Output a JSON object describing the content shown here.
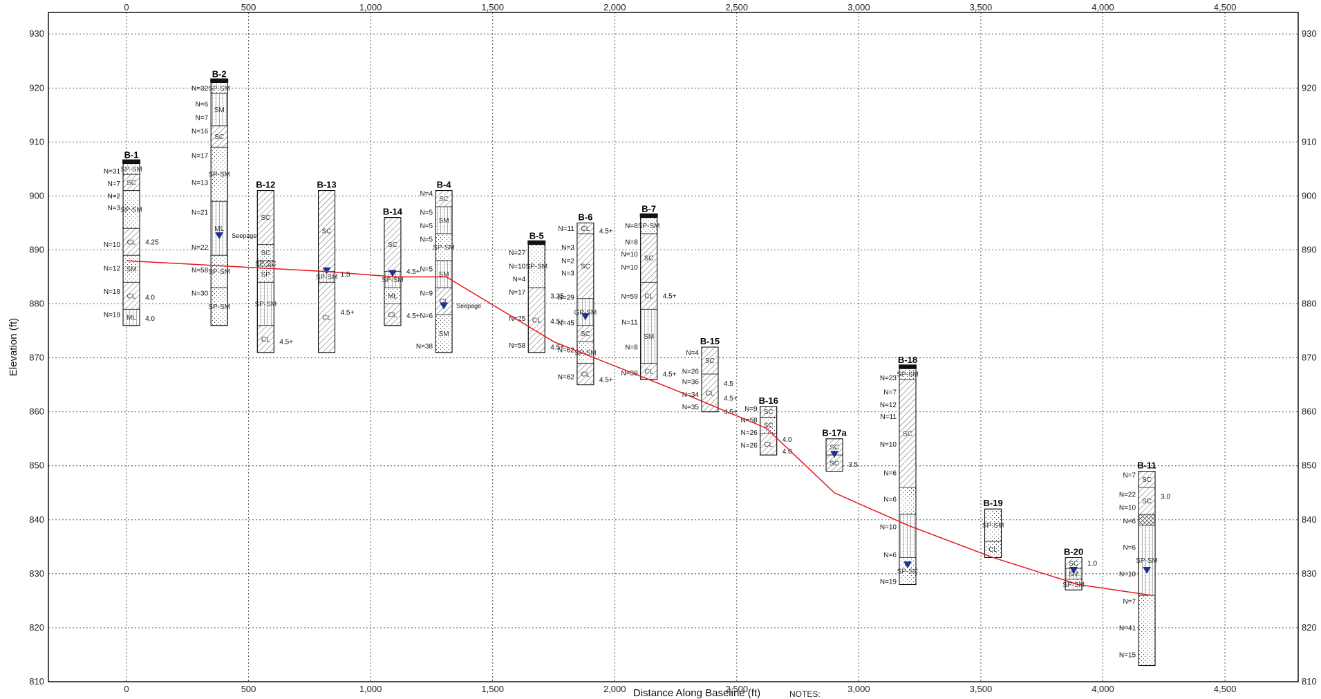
{
  "axes": {
    "x_label": "Distance Along Baseline (ft)",
    "y_label": "Elevation (ft)",
    "x_ticks": [
      "0",
      "500",
      "1,000",
      "1,500",
      "2,000",
      "2,500",
      "3,000",
      "3,500",
      "4,000",
      "4,500"
    ],
    "y_ticks": [
      "930",
      "920",
      "910",
      "900",
      "890",
      "880",
      "870",
      "860",
      "850",
      "840",
      "830",
      "820",
      "810"
    ],
    "notes_label": "NOTES:"
  },
  "chart_data": {
    "type": "line",
    "xlim": [
      -320,
      4800
    ],
    "ylim": [
      810,
      934
    ],
    "x_tick_values": [
      0,
      500,
      1000,
      1500,
      2000,
      2500,
      3000,
      3500,
      4000,
      4500
    ],
    "y_tick_values": [
      930,
      920,
      910,
      900,
      890,
      880,
      870,
      860,
      850,
      840,
      830,
      820,
      810
    ],
    "grid": true,
    "line_color": "#e8141b",
    "water_color": "#1f2f8f",
    "profile_line": {
      "x": [
        0,
        820,
        1100,
        1310,
        1750,
        2250,
        2620,
        2900,
        3200,
        3550,
        3900,
        4200
      ],
      "y": [
        888,
        886,
        885,
        885,
        873,
        864,
        857,
        845,
        839,
        833,
        828,
        826
      ]
    },
    "borings": [
      {
        "name": "B-1",
        "x": 20,
        "top": 906,
        "bottom": 876,
        "cap": true,
        "layers": [
          {
            "b": 904,
            "p": "dots",
            "l": "SP-SM"
          },
          {
            "b": 901,
            "p": "hatch",
            "l": "SC"
          },
          {
            "b": 894,
            "p": "dots",
            "l": "SP-SM"
          },
          {
            "b": 889,
            "p": "hatch",
            "l": "CL"
          },
          {
            "b": 884,
            "p": "dots",
            "l": "SM"
          },
          {
            "b": 879,
            "p": "hatch",
            "l": "CL"
          },
          {
            "b": 876,
            "p": "vert",
            "l": "ML"
          }
        ],
        "n": [
          {
            "y": 904.6,
            "t": "N=31"
          },
          {
            "y": 902.3,
            "t": "N=7"
          },
          {
            "y": 900,
            "t": "N=2"
          },
          {
            "y": 897.8,
            "t": "N=3"
          },
          {
            "y": 891,
            "t": "N=10"
          },
          {
            "y": 886.6,
            "t": "N=12"
          },
          {
            "y": 882.3,
            "t": "N=18"
          },
          {
            "y": 878,
            "t": "N=19"
          }
        ],
        "pp": [
          {
            "y": 891.5,
            "t": "4.25"
          },
          {
            "y": 881.2,
            "t": "4.0"
          },
          {
            "y": 877.3,
            "t": "4.0"
          }
        ],
        "water": null,
        "note": ""
      },
      {
        "name": "B-2",
        "x": 380,
        "top": 921,
        "bottom": 876,
        "cap": true,
        "layers": [
          {
            "b": 919,
            "p": "dots",
            "l": "SP-SM"
          },
          {
            "b": 913,
            "p": "vert",
            "l": "SM"
          },
          {
            "b": 909,
            "p": "hatch",
            "l": "SC"
          },
          {
            "b": 899,
            "p": "dots",
            "l": "SP-SM"
          },
          {
            "b": 889,
            "p": "vert",
            "l": "ML"
          },
          {
            "b": 883,
            "p": "dots",
            "l": "SP-SM"
          },
          {
            "b": 876,
            "p": "dots",
            "l": "SP-SM"
          }
        ],
        "n": [
          {
            "y": 920,
            "t": "N=32"
          },
          {
            "y": 917,
            "t": "N=6"
          },
          {
            "y": 914.5,
            "t": "N=7"
          },
          {
            "y": 912,
            "t": "N=16"
          },
          {
            "y": 907.5,
            "t": "N=17"
          },
          {
            "y": 902.5,
            "t": "N=13"
          },
          {
            "y": 897,
            "t": "N=21"
          },
          {
            "y": 890.5,
            "t": "N=22"
          },
          {
            "y": 886.3,
            "t": "N=58"
          },
          {
            "y": 882,
            "t": "N=30"
          }
        ],
        "pp": [],
        "water": 892.5,
        "note": "Seepage"
      },
      {
        "name": "B-12",
        "x": 570,
        "top": 901,
        "bottom": 871,
        "cap": false,
        "layers": [
          {
            "b": 891,
            "p": "hatch",
            "l": "SC"
          },
          {
            "b": 888,
            "p": "dots",
            "l": "SC"
          },
          {
            "b": 887,
            "p": "dots",
            "l": "SP-SC"
          },
          {
            "b": 884,
            "p": "dots",
            "l": "SP"
          },
          {
            "b": 876,
            "p": "vert",
            "l": "SP-SM"
          },
          {
            "b": 871,
            "p": "hatch",
            "l": "CL"
          }
        ],
        "n": [],
        "pp": [
          {
            "y": 873,
            "t": "4.5+"
          }
        ],
        "water": null,
        "note": ""
      },
      {
        "name": "B-13",
        "x": 820,
        "top": 901,
        "bottom": 871,
        "cap": false,
        "layers": [
          {
            "b": 886,
            "p": "hatch",
            "l": "SC"
          },
          {
            "b": 884,
            "p": "vert",
            "l": "SP-SM"
          },
          {
            "b": 871,
            "p": "hatch",
            "l": "CL"
          }
        ],
        "n": [],
        "pp": [
          {
            "y": 885.5,
            "t": "1.5"
          },
          {
            "y": 878.5,
            "t": "4.5+"
          }
        ],
        "water": 886,
        "note": ""
      },
      {
        "name": "B-14",
        "x": 1090,
        "top": 896,
        "bottom": 876,
        "cap": false,
        "layers": [
          {
            "b": 886,
            "p": "hatch",
            "l": "SC"
          },
          {
            "b": 883,
            "p": "vert",
            "l": "SP-SM"
          },
          {
            "b": 880,
            "p": "dots",
            "l": "ML"
          },
          {
            "b": 876,
            "p": "hatch",
            "l": "CL"
          }
        ],
        "n": [],
        "pp": [
          {
            "y": 886,
            "t": "4.5+"
          },
          {
            "y": 877.8,
            "t": "4.5+"
          }
        ],
        "water": 885.5,
        "note": ""
      },
      {
        "name": "B-4",
        "x": 1300,
        "top": 901,
        "bottom": 871,
        "cap": false,
        "layers": [
          {
            "b": 898,
            "p": "hatch",
            "l": "SC"
          },
          {
            "b": 893,
            "p": "vert",
            "l": "SM"
          },
          {
            "b": 888,
            "p": "dots",
            "l": "SP-SM"
          },
          {
            "b": 883,
            "p": "vert",
            "l": "SM"
          },
          {
            "b": 878,
            "p": "hatch",
            "l": "CL"
          },
          {
            "b": 871,
            "p": "dots",
            "l": "SM"
          }
        ],
        "n": [
          {
            "y": 900.5,
            "t": "N=4"
          },
          {
            "y": 897,
            "t": "N=5"
          },
          {
            "y": 894.5,
            "t": "N=5"
          },
          {
            "y": 892,
            "t": "N=5"
          },
          {
            "y": 886.5,
            "t": "N=5"
          },
          {
            "y": 882,
            "t": "N=9"
          },
          {
            "y": 877.8,
            "t": "N=6"
          },
          {
            "y": 872.2,
            "t": "N=38"
          }
        ],
        "pp": [],
        "water": 879.5,
        "note": "Seepage"
      },
      {
        "name": "B-5",
        "x": 1680,
        "top": 891,
        "bottom": 871,
        "cap": true,
        "layers": [
          {
            "b": 883,
            "p": "dots",
            "l": "SP-SM"
          },
          {
            "b": 871,
            "p": "hatch",
            "l": "CL"
          }
        ],
        "n": [
          {
            "y": 889.5,
            "t": "N=27"
          },
          {
            "y": 887,
            "t": "N=10"
          },
          {
            "y": 884.6,
            "t": "N=4"
          },
          {
            "y": 882.2,
            "t": "N=17"
          },
          {
            "y": 877.3,
            "t": "N=25"
          },
          {
            "y": 872.3,
            "t": "N=58"
          }
        ],
        "pp": [
          {
            "y": 881.5,
            "t": "3.25"
          },
          {
            "y": 876.8,
            "t": "4.5+"
          },
          {
            "y": 872,
            "t": "4.5+"
          }
        ],
        "water": null,
        "note": ""
      },
      {
        "name": "B-6",
        "x": 1880,
        "top": 895,
        "bottom": 865,
        "cap": false,
        "layers": [
          {
            "b": 893,
            "p": "hatch",
            "l": "CL"
          },
          {
            "b": 881,
            "p": "hatch",
            "l": "SC"
          },
          {
            "b": 876,
            "p": "vert",
            "l": "GP-SM"
          },
          {
            "b": 873,
            "p": "hatch",
            "l": "SC"
          },
          {
            "b": 869,
            "p": "dots",
            "l": "SP-SM"
          },
          {
            "b": 865,
            "p": "hatch",
            "l": "CL"
          }
        ],
        "n": [
          {
            "y": 894,
            "t": "N=11"
          },
          {
            "y": 890.5,
            "t": "N=3"
          },
          {
            "y": 888,
            "t": "N=2"
          },
          {
            "y": 885.7,
            "t": "N=3"
          },
          {
            "y": 881.2,
            "t": "N=29"
          },
          {
            "y": 876.5,
            "t": "N=45"
          },
          {
            "y": 871.5,
            "t": "N=62"
          },
          {
            "y": 866.5,
            "t": "N=62"
          }
        ],
        "pp": [
          {
            "y": 893.5,
            "t": "4.5+"
          },
          {
            "y": 866,
            "t": "4.5+"
          }
        ],
        "water": 877.5,
        "note": ""
      },
      {
        "name": "B-7",
        "x": 2140,
        "top": 896,
        "bottom": 866,
        "cap": true,
        "layers": [
          {
            "b": 893,
            "p": "dots",
            "l": "SP-SM"
          },
          {
            "b": 884,
            "p": "hatch",
            "l": "SC"
          },
          {
            "b": 879,
            "p": "hatch",
            "l": "CL"
          },
          {
            "b": 869,
            "p": "vert",
            "l": "SM"
          },
          {
            "b": 866,
            "p": "hatch",
            "l": "CL"
          }
        ],
        "n": [
          {
            "y": 894.5,
            "t": "N=8"
          },
          {
            "y": 891.5,
            "t": "N=8"
          },
          {
            "y": 889.2,
            "t": "N=10"
          },
          {
            "y": 886.8,
            "t": "N=10"
          },
          {
            "y": 881.4,
            "t": "N=59"
          },
          {
            "y": 876.6,
            "t": "N=11"
          },
          {
            "y": 872,
            "t": "N=8"
          },
          {
            "y": 867.2,
            "t": "N=39"
          }
        ],
        "pp": [
          {
            "y": 881.5,
            "t": "4.5+"
          },
          {
            "y": 867,
            "t": "4.5+"
          }
        ],
        "water": null,
        "note": ""
      },
      {
        "name": "B-15",
        "x": 2390,
        "top": 872,
        "bottom": 860,
        "cap": false,
        "layers": [
          {
            "b": 867,
            "p": "hatch",
            "l": "SC"
          },
          {
            "b": 860,
            "p": "hatch",
            "l": "CL"
          }
        ],
        "n": [
          {
            "y": 871,
            "t": "N=4"
          },
          {
            "y": 867.5,
            "t": "N=26"
          },
          {
            "y": 865.6,
            "t": "N=36"
          },
          {
            "y": 863.2,
            "t": "N=34"
          },
          {
            "y": 860.9,
            "t": "N=35"
          }
        ],
        "pp": [
          {
            "y": 865.3,
            "t": "4.5"
          },
          {
            "y": 862.5,
            "t": "4.5+"
          },
          {
            "y": 860,
            "t": "4.5+"
          }
        ],
        "water": null,
        "note": ""
      },
      {
        "name": "B-16",
        "x": 2630,
        "top": 861,
        "bottom": 852,
        "cap": false,
        "layers": [
          {
            "b": 859,
            "p": "hatch",
            "l": "SC"
          },
          {
            "b": 856,
            "p": "dots",
            "l": "SC"
          },
          {
            "b": 852,
            "p": "hatch",
            "l": "CL"
          }
        ],
        "n": [
          {
            "y": 860.6,
            "t": "N=9"
          },
          {
            "y": 858.5,
            "t": "N=58"
          },
          {
            "y": 856.2,
            "t": "N=26"
          },
          {
            "y": 853.8,
            "t": "N=26"
          }
        ],
        "pp": [
          {
            "y": 854.9,
            "t": "4.0"
          },
          {
            "y": 852.7,
            "t": "4.0"
          }
        ],
        "water": null,
        "note": ""
      },
      {
        "name": "B-17a",
        "x": 2900,
        "top": 855,
        "bottom": 849,
        "cap": false,
        "layers": [
          {
            "b": 852,
            "p": "hatch",
            "l": "SC"
          },
          {
            "b": 849,
            "p": "hatch",
            "l": "SC"
          }
        ],
        "n": [],
        "pp": [
          {
            "y": 850.3,
            "t": "3.5"
          }
        ],
        "water": 852,
        "note": ""
      },
      {
        "name": "B-18",
        "x": 3200,
        "top": 868,
        "bottom": 828,
        "cap": true,
        "layers": [
          {
            "b": 866,
            "p": "dots",
            "l": "SP-SM"
          },
          {
            "b": 846,
            "p": "hatch",
            "l": "SC"
          },
          {
            "b": 841,
            "p": "dots",
            "l": ""
          },
          {
            "b": 833,
            "p": "vert",
            "l": ""
          },
          {
            "b": 828,
            "p": "dots",
            "l": "SP-SC"
          }
        ],
        "n": [
          {
            "y": 866.3,
            "t": "N=23"
          },
          {
            "y": 863.7,
            "t": "N=7"
          },
          {
            "y": 861.3,
            "t": "N=12"
          },
          {
            "y": 859.1,
            "t": "N=11"
          },
          {
            "y": 854,
            "t": "N=10"
          },
          {
            "y": 848.7,
            "t": "N=6"
          },
          {
            "y": 843.8,
            "t": "N=6"
          },
          {
            "y": 838.7,
            "t": "N=10"
          },
          {
            "y": 833.5,
            "t": "N=6"
          },
          {
            "y": 828.6,
            "t": "N=19"
          }
        ],
        "pp": [],
        "water": 831.5,
        "note": ""
      },
      {
        "name": "B-19",
        "x": 3550,
        "top": 842,
        "bottom": 833,
        "cap": false,
        "layers": [
          {
            "b": 836,
            "p": "dots",
            "l": "SP-SM"
          },
          {
            "b": 833,
            "p": "dots",
            "l": "CL"
          }
        ],
        "n": [],
        "pp": [],
        "water": null,
        "note": ""
      },
      {
        "name": "B-20",
        "x": 3880,
        "top": 833,
        "bottom": 827,
        "cap": false,
        "layers": [
          {
            "b": 831,
            "p": "hatch",
            "l": "SC"
          },
          {
            "b": 829,
            "p": "vert",
            "l": "SM"
          },
          {
            "b": 827,
            "p": "dots",
            "l": "SP-SM"
          }
        ],
        "n": [],
        "pp": [
          {
            "y": 832,
            "t": "1.0"
          }
        ],
        "water": 830.5,
        "note": ""
      },
      {
        "name": "B-11",
        "x": 4180,
        "top": 849,
        "bottom": 813,
        "cap": false,
        "layers": [
          {
            "b": 846,
            "p": "hatch",
            "l": "SC"
          },
          {
            "b": 841,
            "p": "hatch",
            "l": "SC"
          },
          {
            "b": 839,
            "p": "cross",
            "l": ""
          },
          {
            "b": 826,
            "p": "vert",
            "l": "SP-SM"
          },
          {
            "b": 813,
            "p": "dots",
            "l": ""
          }
        ],
        "n": [
          {
            "y": 848.3,
            "t": "N=7"
          },
          {
            "y": 844.7,
            "t": "N=22"
          },
          {
            "y": 842.3,
            "t": "N=10"
          },
          {
            "y": 839.8,
            "t": "N=6"
          },
          {
            "y": 834.9,
            "t": "N=6"
          },
          {
            "y": 830,
            "t": "N=10"
          },
          {
            "y": 824.9,
            "t": "N=7"
          },
          {
            "y": 820,
            "t": "N=41"
          },
          {
            "y": 815,
            "t": "N=15"
          }
        ],
        "pp": [
          {
            "y": 844.3,
            "t": "3.0"
          }
        ],
        "water": 830.5,
        "note": ""
      }
    ]
  }
}
